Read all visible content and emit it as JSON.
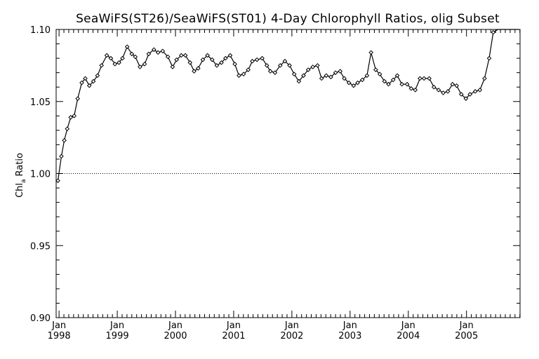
{
  "chart_data": {
    "type": "line",
    "title": "SeaWiFS(ST26)/SeaWiFS(ST01) 4-Day Chlorophyll Ratios, olig Subset",
    "ylabel_main": "Chl",
    "ylabel_sub": "a",
    "ylabel_rest": "Ratio",
    "ylim": [
      0.9,
      1.1
    ],
    "yticks": [
      "0.90",
      "0.95",
      "1.00",
      "1.05",
      "1.10"
    ],
    "reference_line": 1.0,
    "xlim": [
      1997.95,
      2005.92
    ],
    "xticks": [
      {
        "month": "Jan",
        "year": "1998",
        "x": 1998.0
      },
      {
        "month": "Jan",
        "year": "1999",
        "x": 1999.0
      },
      {
        "month": "Jan",
        "year": "2000",
        "x": 2000.0
      },
      {
        "month": "Jan",
        "year": "2001",
        "x": 2001.0
      },
      {
        "month": "Jan",
        "year": "2002",
        "x": 2002.0
      },
      {
        "month": "Jan",
        "year": "2003",
        "x": 2003.0
      },
      {
        "month": "Jan",
        "year": "2004",
        "x": 2004.0
      },
      {
        "month": "Jan",
        "year": "2005",
        "x": 2005.0
      }
    ],
    "grid": false,
    "series": [
      {
        "marker": "diamond",
        "color": "#000000",
        "x": [
          1997.98,
          1998.04,
          1998.09,
          1998.14,
          1998.2,
          1998.26,
          1998.32,
          1998.39,
          1998.45,
          1998.52,
          1998.59,
          1998.66,
          1998.73,
          1998.82,
          1998.89,
          1998.96,
          1999.03,
          1999.09,
          1999.17,
          1999.25,
          1999.31,
          1999.39,
          1999.47,
          1999.54,
          1999.63,
          1999.7,
          1999.78,
          1999.87,
          1999.95,
          2000.02,
          2000.1,
          2000.17,
          2000.25,
          2000.32,
          2000.39,
          2000.47,
          2000.55,
          2000.63,
          2000.71,
          2000.79,
          2000.86,
          2000.94,
          2001.02,
          2001.09,
          2001.17,
          2001.25,
          2001.32,
          2001.4,
          2001.49,
          2001.57,
          2001.63,
          2001.71,
          2001.8,
          2001.88,
          2001.96,
          2002.04,
          2002.12,
          2002.2,
          2002.28,
          2002.36,
          2002.44,
          2002.51,
          2002.59,
          2002.67,
          2002.75,
          2002.83,
          2002.9,
          2002.98,
          2003.06,
          2003.13,
          2003.21,
          2003.29,
          2003.36,
          2003.44,
          2003.51,
          2003.59,
          2003.66,
          2003.74,
          2003.81,
          2003.89,
          2003.98,
          2004.05,
          2004.12,
          2004.2,
          2004.27,
          2004.36,
          2004.44,
          2004.52,
          2004.6,
          2004.68,
          2004.76,
          2004.83,
          2004.91,
          2004.99,
          2005.06,
          2005.15,
          2005.23,
          2005.31,
          2005.39,
          2005.46,
          2005.54,
          2005.62,
          2005.7,
          2005.78,
          2005.85,
          2005.87,
          2005.88,
          2005.89,
          2005.9
        ],
        "y": [
          0.995,
          1.012,
          1.023,
          1.031,
          1.039,
          1.04,
          1.052,
          1.063,
          1.066,
          1.061,
          1.064,
          1.068,
          1.075,
          1.082,
          1.08,
          1.076,
          1.077,
          1.08,
          1.088,
          1.083,
          1.081,
          1.074,
          1.076,
          1.083,
          1.086,
          1.084,
          1.085,
          1.081,
          1.074,
          1.079,
          1.082,
          1.082,
          1.077,
          1.071,
          1.073,
          1.079,
          1.082,
          1.079,
          1.075,
          1.077,
          1.08,
          1.082,
          1.076,
          1.068,
          1.069,
          1.072,
          1.078,
          1.079,
          1.08,
          1.075,
          1.071,
          1.07,
          1.075,
          1.078,
          1.075,
          1.069,
          1.064,
          1.068,
          1.072,
          1.074,
          1.075,
          1.066,
          1.068,
          1.067,
          1.07,
          1.071,
          1.066,
          1.063,
          1.061,
          1.063,
          1.065,
          1.068,
          1.084,
          1.072,
          1.069,
          1.064,
          1.062,
          1.065,
          1.068,
          1.062,
          1.062,
          1.059,
          1.058,
          1.066,
          1.066,
          1.066,
          1.06,
          1.058,
          1.056,
          1.057,
          1.062,
          1.061,
          1.055,
          1.052,
          1.055,
          1.057,
          1.058,
          1.066,
          1.08,
          1.098,
          1.1,
          1.1,
          1.1,
          1.1,
          1.1,
          1.1,
          1.1,
          1.1,
          1.1
        ]
      }
    ]
  }
}
